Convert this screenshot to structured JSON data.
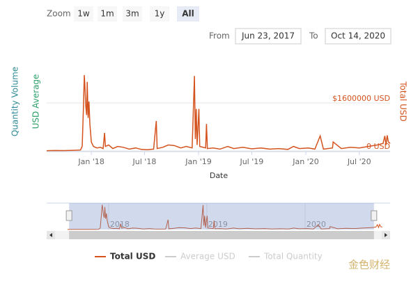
{
  "range_selector": {
    "zoom_label": "Zoom",
    "buttons": [
      "1w",
      "1m",
      "3m",
      "1y",
      "All"
    ],
    "selected": 4,
    "from_label": "From",
    "from_value": "Jun 23, 2017",
    "to_label": "To",
    "to_value": "Oct 14, 2020"
  },
  "chart_data": {
    "type": "line",
    "x_title": "Date",
    "y_titles": [
      {
        "text": "Quantity Volume",
        "color": "#2e8b95"
      },
      {
        "text": "USD Average",
        "color": "#2ea06a"
      }
    ],
    "y2_title": "Total USD",
    "xlim": [
      "2017-08-02",
      "2020-10-14"
    ],
    "xticks": [
      {
        "value": "2018-01-01",
        "label": "Jan '18"
      },
      {
        "value": "2018-07-01",
        "label": "Jul '18"
      },
      {
        "value": "2019-01-01",
        "label": "Jan '19"
      },
      {
        "value": "2019-07-01",
        "label": "Jul '19"
      },
      {
        "value": "2020-01-01",
        "label": "Jan '20"
      },
      {
        "value": "2020-07-01",
        "label": "Jul '20"
      }
    ],
    "ylim": [
      0,
      2700000
    ],
    "yticks": [
      {
        "value": 0,
        "label": "0 USD"
      },
      {
        "value": 1600000,
        "label": "$1600000 USD"
      }
    ],
    "grid": true,
    "x": [
      "2017-08-02",
      "2017-09-01",
      "2017-10-01",
      "2017-11-01",
      "2017-11-25",
      "2017-12-01",
      "2017-12-05",
      "2017-12-08",
      "2017-12-10",
      "2017-12-13",
      "2017-12-16",
      "2017-12-18",
      "2017-12-21",
      "2017-12-24",
      "2017-12-27",
      "2018-01-01",
      "2018-01-08",
      "2018-01-20",
      "2018-02-01",
      "2018-02-10",
      "2018-02-15",
      "2018-02-18",
      "2018-03-01",
      "2018-03-15",
      "2018-04-01",
      "2018-04-20",
      "2018-05-10",
      "2018-06-01",
      "2018-06-20",
      "2018-07-10",
      "2018-08-01",
      "2018-08-10",
      "2018-08-13",
      "2018-09-01",
      "2018-09-20",
      "2018-10-10",
      "2018-11-01",
      "2018-11-20",
      "2018-12-10",
      "2018-12-18",
      "2018-12-21",
      "2018-12-24",
      "2018-12-27",
      "2019-01-02",
      "2019-01-05",
      "2019-01-25",
      "2019-01-28",
      "2019-01-31",
      "2019-02-20",
      "2019-03-15",
      "2019-04-10",
      "2019-05-01",
      "2019-06-01",
      "2019-07-01",
      "2019-08-01",
      "2019-09-01",
      "2019-10-01",
      "2019-11-01",
      "2019-11-20",
      "2019-12-10",
      "2020-01-10",
      "2020-02-01",
      "2020-02-19",
      "2020-03-01",
      "2020-04-01",
      "2020-04-03",
      "2020-05-01",
      "2020-06-01",
      "2020-07-01",
      "2020-08-01",
      "2020-09-01",
      "2020-09-20",
      "2020-09-26",
      "2020-09-30",
      "2020-10-04",
      "2020-10-08",
      "2020-10-14"
    ],
    "series": [
      {
        "name": "Total USD",
        "color": "#d4531e",
        "values": [
          10000,
          15000,
          12000,
          20000,
          30000,
          150000,
          1400000,
          2530000,
          2200000,
          1500000,
          1200000,
          2300000,
          1100000,
          1650000,
          900000,
          300000,
          150000,
          100000,
          120000,
          80000,
          600000,
          150000,
          200000,
          80000,
          150000,
          120000,
          60000,
          100000,
          50000,
          40000,
          60000,
          1000000,
          80000,
          120000,
          200000,
          180000,
          100000,
          150000,
          100000,
          2500000,
          400000,
          1400000,
          200000,
          1400000,
          150000,
          100000,
          900000,
          80000,
          100000,
          60000,
          150000,
          80000,
          120000,
          70000,
          100000,
          60000,
          80000,
          50000,
          150000,
          80000,
          100000,
          60000,
          500000,
          60000,
          100000,
          300000,
          80000,
          120000,
          100000,
          150000,
          200000,
          250000,
          500000,
          200000,
          520000,
          300000,
          250000
        ]
      }
    ],
    "hidden_series": [
      {
        "name": "Average USD",
        "color": "#cccccc"
      },
      {
        "name": "Total Quantity",
        "color": "#cccccc"
      }
    ],
    "navigator": {
      "xlim": [
        "2017-05-16",
        "2020-11-12"
      ],
      "ylim": [
        0,
        2700000
      ],
      "xticks": [
        {
          "value": "2018-01-01",
          "label": "2018"
        },
        {
          "value": "2019-01-01",
          "label": "2019"
        },
        {
          "value": "2020-01-01",
          "label": "2020"
        }
      ]
    }
  },
  "watermark": "金色财经"
}
